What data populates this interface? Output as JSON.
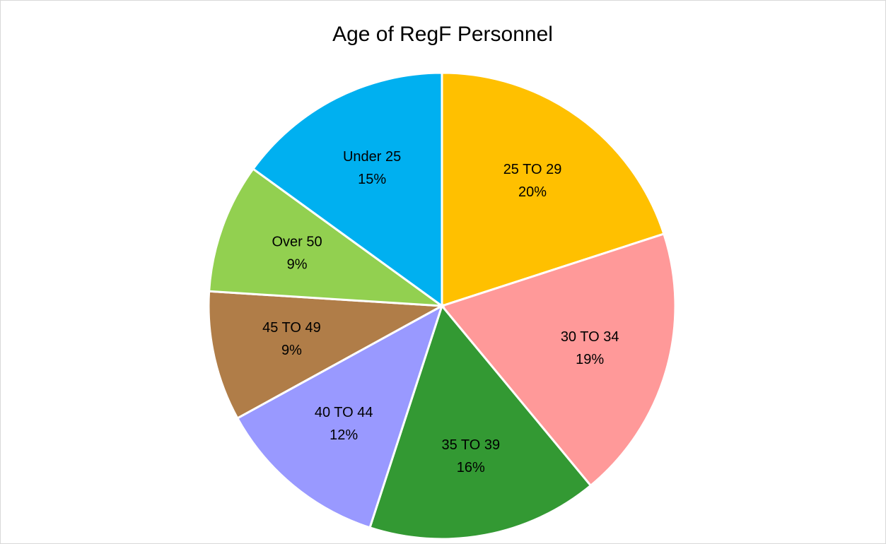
{
  "chart_data": {
    "type": "pie",
    "title": "Age of RegF Personnel",
    "categories": [
      "25 TO 29",
      "30 TO 34",
      "35 TO 39",
      "40 TO 44",
      "45 TO 49",
      "Over 50",
      "Under 25"
    ],
    "values": [
      20,
      19,
      16,
      12,
      9,
      9,
      15
    ],
    "value_labels": [
      "20%",
      "19%",
      "16%",
      "12%",
      "9%",
      "9%",
      "15%"
    ],
    "colors": [
      "#FFC000",
      "#FF9999",
      "#339933",
      "#9999FF",
      "#B07D48",
      "#92D050",
      "#00B0F0"
    ]
  }
}
